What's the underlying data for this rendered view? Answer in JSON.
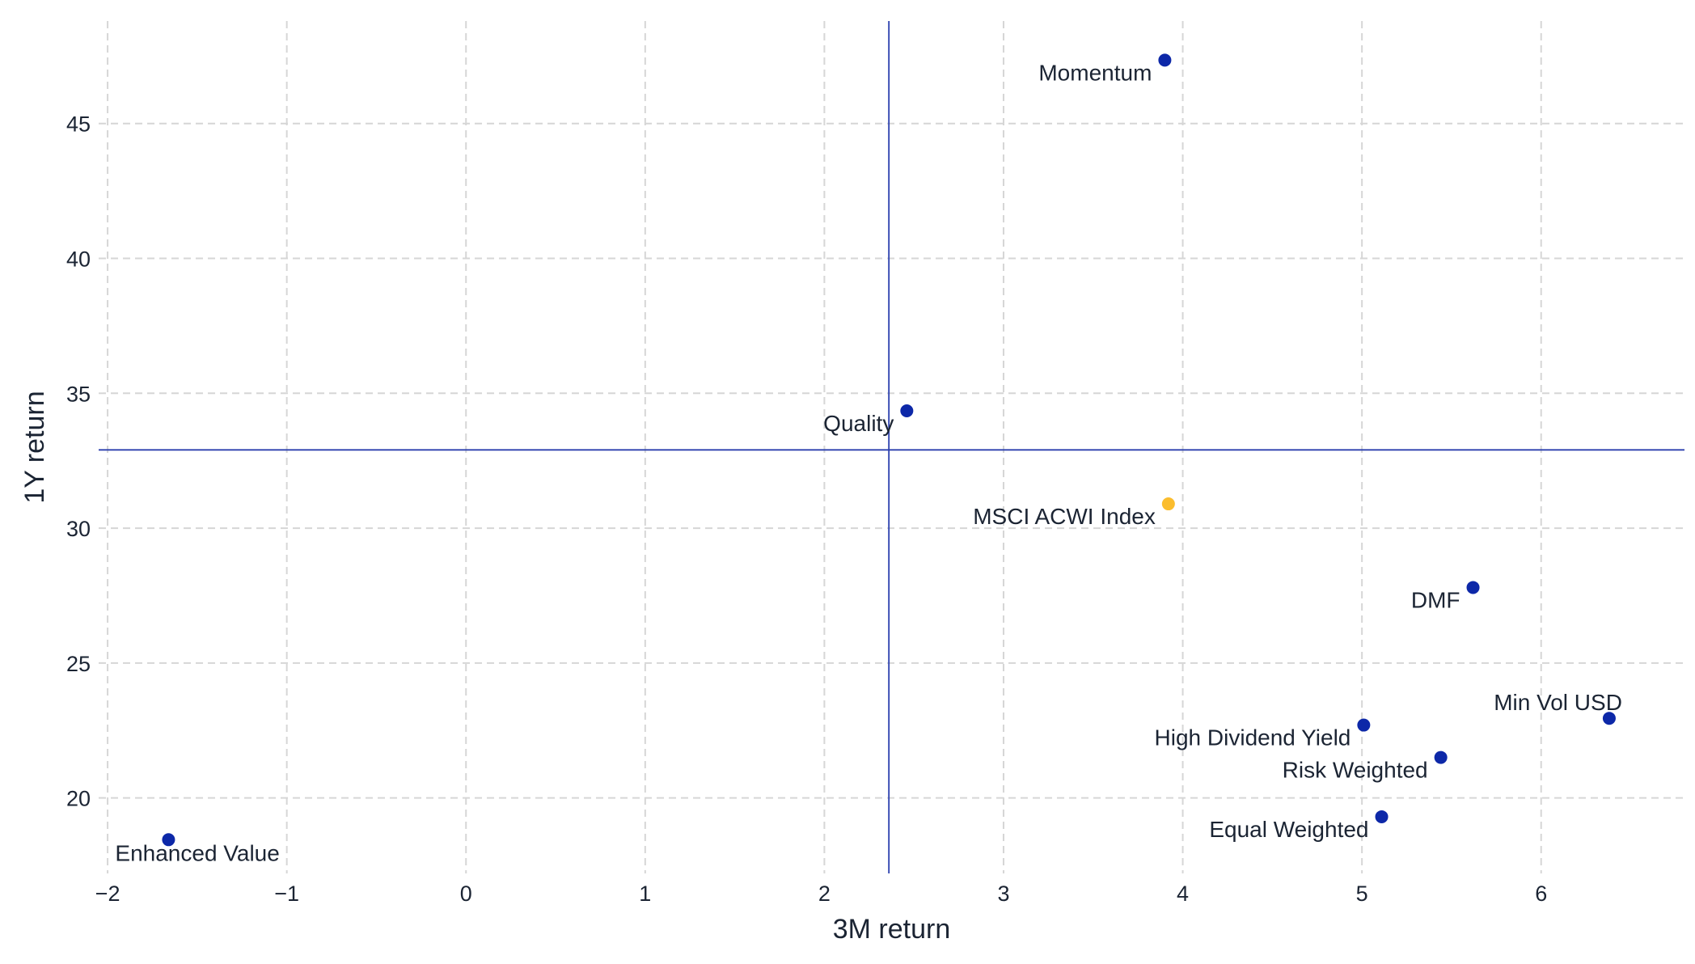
{
  "chart_data": {
    "type": "scatter",
    "title": "",
    "xlabel": "3M return",
    "ylabel": "1Y return",
    "xlim": [
      -2.05,
      6.8
    ],
    "ylim": [
      17.2,
      48.8
    ],
    "x_ticks": [
      -2,
      -1,
      0,
      1,
      2,
      3,
      4,
      5,
      6
    ],
    "x_tick_labels": [
      "−2",
      "−1",
      "0",
      "1",
      "2",
      "3",
      "4",
      "5",
      "6"
    ],
    "y_ticks": [
      20,
      25,
      30,
      35,
      40,
      45
    ],
    "y_tick_labels": [
      "20",
      "25",
      "30",
      "35",
      "40",
      "45"
    ],
    "grid": true,
    "reference_lines": {
      "x": 2.36,
      "y": 32.9
    },
    "colors": {
      "point": "#0d28a8",
      "highlight": "#fbbd2e",
      "reference": "#2b3fae",
      "grid": "#d6d6d6",
      "text": "#1b2433"
    },
    "points": [
      {
        "label": "Momentum",
        "x": 3.9,
        "y": 47.35,
        "highlight": false,
        "label_pos": "left"
      },
      {
        "label": "Quality",
        "x": 2.46,
        "y": 34.35,
        "highlight": false,
        "label_pos": "left"
      },
      {
        "label": "MSCI ACWI Index",
        "x": 3.92,
        "y": 30.9,
        "highlight": true,
        "label_pos": "left"
      },
      {
        "label": "DMF",
        "x": 5.62,
        "y": 27.8,
        "highlight": false,
        "label_pos": "left"
      },
      {
        "label": "Min Vol USD",
        "x": 6.38,
        "y": 22.95,
        "highlight": false,
        "label_pos": "above-left"
      },
      {
        "label": "High Dividend Yield",
        "x": 5.01,
        "y": 22.7,
        "highlight": false,
        "label_pos": "left"
      },
      {
        "label": "Risk Weighted",
        "x": 5.44,
        "y": 21.5,
        "highlight": false,
        "label_pos": "left"
      },
      {
        "label": "Equal Weighted",
        "x": 5.11,
        "y": 19.3,
        "highlight": false,
        "label_pos": "left"
      },
      {
        "label": "Enhanced Value",
        "x": -1.66,
        "y": 18.45,
        "highlight": false,
        "label_pos": "below"
      }
    ]
  }
}
